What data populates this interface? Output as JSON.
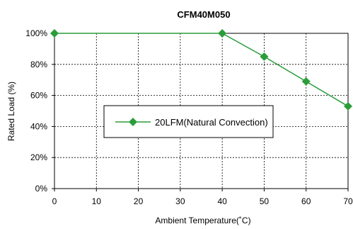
{
  "chart_data": {
    "type": "line",
    "title": "CFM40M050",
    "xlabel": "Ambient Temperature(˚C)",
    "ylabel": "Rated Load (%)",
    "xlim": [
      0,
      70
    ],
    "ylim": [
      0,
      100
    ],
    "x_ticks": [
      "0",
      "10",
      "20",
      "30",
      "40",
      "50",
      "60",
      "70"
    ],
    "y_ticks": [
      "0%",
      "20%",
      "40%",
      "60%",
      "80%",
      "100%"
    ],
    "grid": true,
    "legend_position": "center",
    "series": [
      {
        "name": "20LFM(Natural Convection)",
        "color": "#2a9d3a",
        "marker": "diamond",
        "x": [
          0,
          40,
          50,
          60,
          70
        ],
        "y": [
          100,
          100,
          85,
          69,
          53
        ]
      }
    ]
  }
}
